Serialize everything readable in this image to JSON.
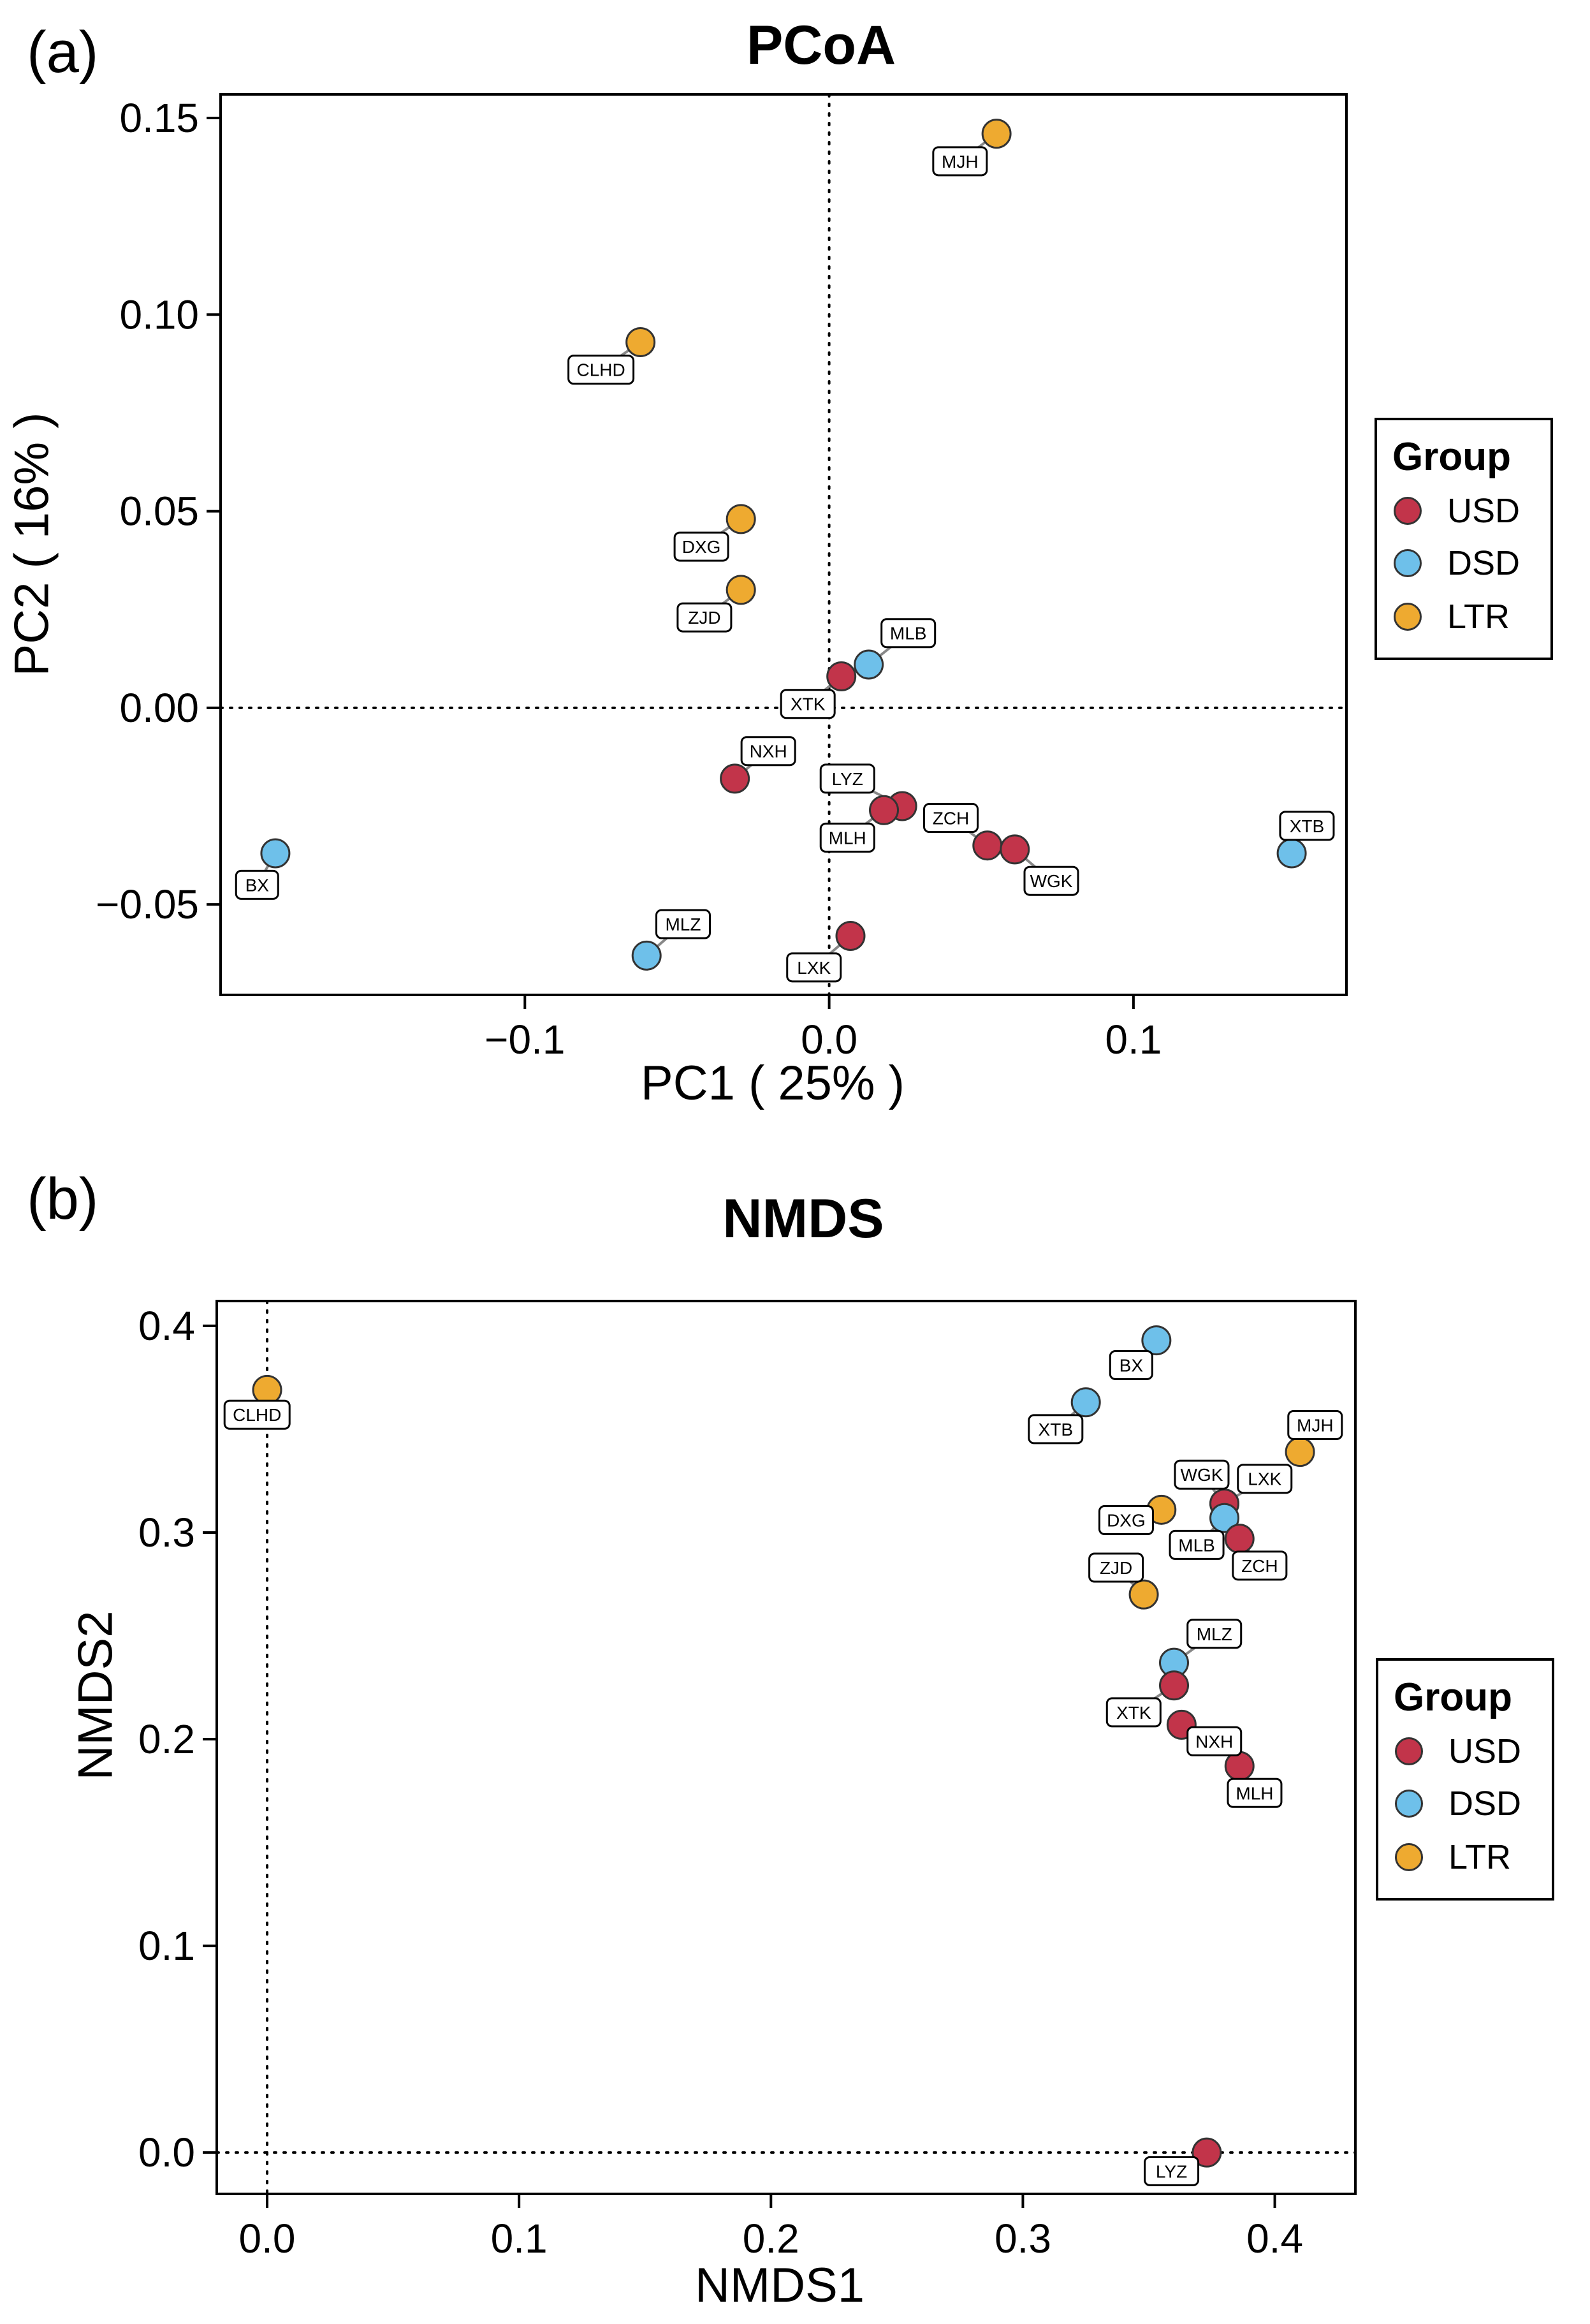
{
  "colors": {
    "USD": "#c2344a",
    "DSD": "#6ec0ea",
    "LTR": "#eeaa30"
  },
  "chart_data": [
    {
      "type": "scatter",
      "panel_label": "(a)",
      "title": "PCoA",
      "xlabel": "PC1 ( 25% )",
      "ylabel": "PC2 ( 16% )",
      "xlim": [
        -0.2,
        0.17
      ],
      "ylim": [
        -0.073,
        0.156
      ],
      "xticks": [
        -0.1,
        0.0,
        0.1
      ],
      "xtick_labels": [
        "−0.1",
        "0.0",
        "0.1"
      ],
      "yticks": [
        -0.05,
        0.0,
        0.05,
        0.1,
        0.15
      ],
      "ytick_labels": [
        "−0.05",
        "0.00",
        "0.05",
        "0.10",
        "0.15"
      ],
      "reference_lines": {
        "x": 0,
        "y": 0
      },
      "legend": {
        "title": "Group",
        "entries": [
          "USD",
          "DSD",
          "LTR"
        ]
      },
      "points": [
        {
          "label": "MJH",
          "group": "LTR",
          "x": 0.055,
          "y": 0.146,
          "lx": 0.043,
          "ly": 0.139
        },
        {
          "label": "CLHD",
          "group": "LTR",
          "x": -0.062,
          "y": 0.093,
          "lx": -0.075,
          "ly": 0.086
        },
        {
          "label": "DXG",
          "group": "LTR",
          "x": -0.029,
          "y": 0.048,
          "lx": -0.042,
          "ly": 0.041
        },
        {
          "label": "ZJD",
          "group": "LTR",
          "x": -0.029,
          "y": 0.03,
          "lx": -0.041,
          "ly": 0.023
        },
        {
          "label": "MLB",
          "group": "DSD",
          "x": 0.013,
          "y": 0.011,
          "lx": 0.026,
          "ly": 0.019
        },
        {
          "label": "XTK",
          "group": "USD",
          "x": 0.004,
          "y": 0.008,
          "lx": -0.007,
          "ly": 0.001
        },
        {
          "label": "NXH",
          "group": "USD",
          "x": -0.031,
          "y": -0.018,
          "lx": -0.02,
          "ly": -0.011
        },
        {
          "label": "LYZ",
          "group": "USD",
          "x": 0.024,
          "y": -0.025,
          "lx": 0.006,
          "ly": -0.018
        },
        {
          "label": "MLH",
          "group": "USD",
          "x": 0.018,
          "y": -0.026,
          "lx": 0.006,
          "ly": -0.033
        },
        {
          "label": "ZCH",
          "group": "USD",
          "x": 0.052,
          "y": -0.035,
          "lx": 0.04,
          "ly": -0.028
        },
        {
          "label": "WGK",
          "group": "USD",
          "x": 0.061,
          "y": -0.036,
          "lx": 0.073,
          "ly": -0.044
        },
        {
          "label": "XTB",
          "group": "DSD",
          "x": 0.152,
          "y": -0.037,
          "lx": 0.157,
          "ly": -0.03
        },
        {
          "label": "BX",
          "group": "DSD",
          "x": -0.182,
          "y": -0.037,
          "lx": -0.188,
          "ly": -0.045
        },
        {
          "label": "MLZ",
          "group": "DSD",
          "x": -0.06,
          "y": -0.063,
          "lx": -0.048,
          "ly": -0.055
        },
        {
          "label": "LXK",
          "group": "USD",
          "x": 0.007,
          "y": -0.058,
          "lx": -0.005,
          "ly": -0.066
        }
      ]
    },
    {
      "type": "scatter",
      "panel_label": "(b)",
      "title": "NMDS",
      "xlabel": "NMDS1",
      "ylabel": "NMDS2",
      "xlim": [
        -0.02,
        0.432
      ],
      "ylim": [
        -0.02,
        0.412
      ],
      "xticks": [
        0.0,
        0.1,
        0.2,
        0.3,
        0.4
      ],
      "xtick_labels": [
        "0.0",
        "0.1",
        "0.2",
        "0.3",
        "0.4"
      ],
      "yticks": [
        0.0,
        0.1,
        0.2,
        0.3,
        0.4
      ],
      "ytick_labels": [
        "0.0",
        "0.1",
        "0.2",
        "0.3",
        "0.4"
      ],
      "reference_lines": {
        "x": 0,
        "y": 0
      },
      "legend": {
        "title": "Group",
        "entries": [
          "USD",
          "DSD",
          "LTR"
        ]
      },
      "points": [
        {
          "label": "CLHD",
          "group": "LTR",
          "x": 0.0,
          "y": 0.369,
          "lx": -0.004,
          "ly": 0.357
        },
        {
          "label": "BX",
          "group": "DSD",
          "x": 0.353,
          "y": 0.393,
          "lx": 0.343,
          "ly": 0.381
        },
        {
          "label": "XTB",
          "group": "DSD",
          "x": 0.325,
          "y": 0.363,
          "lx": 0.313,
          "ly": 0.35
        },
        {
          "label": "MJH",
          "group": "LTR",
          "x": 0.41,
          "y": 0.339,
          "lx": 0.416,
          "ly": 0.352
        },
        {
          "label": "WGK",
          "group": "USD",
          "x": 0.38,
          "y": 0.314,
          "lx": 0.371,
          "ly": 0.328
        },
        {
          "label": "LXK",
          "group": "USD",
          "x": 0.38,
          "y": 0.314,
          "lx": 0.396,
          "ly": 0.326
        },
        {
          "label": "DXG",
          "group": "LTR",
          "x": 0.355,
          "y": 0.311,
          "lx": 0.341,
          "ly": 0.306
        },
        {
          "label": "MLB",
          "group": "DSD",
          "x": 0.38,
          "y": 0.307,
          "lx": 0.369,
          "ly": 0.294
        },
        {
          "label": "ZCH",
          "group": "USD",
          "x": 0.386,
          "y": 0.297,
          "lx": 0.394,
          "ly": 0.284
        },
        {
          "label": "ZJD",
          "group": "LTR",
          "x": 0.348,
          "y": 0.27,
          "lx": 0.337,
          "ly": 0.283
        },
        {
          "label": "MLZ",
          "group": "DSD",
          "x": 0.36,
          "y": 0.237,
          "lx": 0.376,
          "ly": 0.251
        },
        {
          "label": "XTK",
          "group": "USD",
          "x": 0.36,
          "y": 0.226,
          "lx": 0.344,
          "ly": 0.213
        },
        {
          "label": "NXH",
          "group": "USD",
          "x": 0.363,
          "y": 0.207,
          "lx": 0.376,
          "ly": 0.199
        },
        {
          "label": "MLH",
          "group": "USD",
          "x": 0.386,
          "y": 0.187,
          "lx": 0.392,
          "ly": 0.174
        },
        {
          "label": "LYZ",
          "group": "USD",
          "x": 0.373,
          "y": 0.0,
          "lx": 0.359,
          "ly": -0.009
        }
      ]
    }
  ]
}
